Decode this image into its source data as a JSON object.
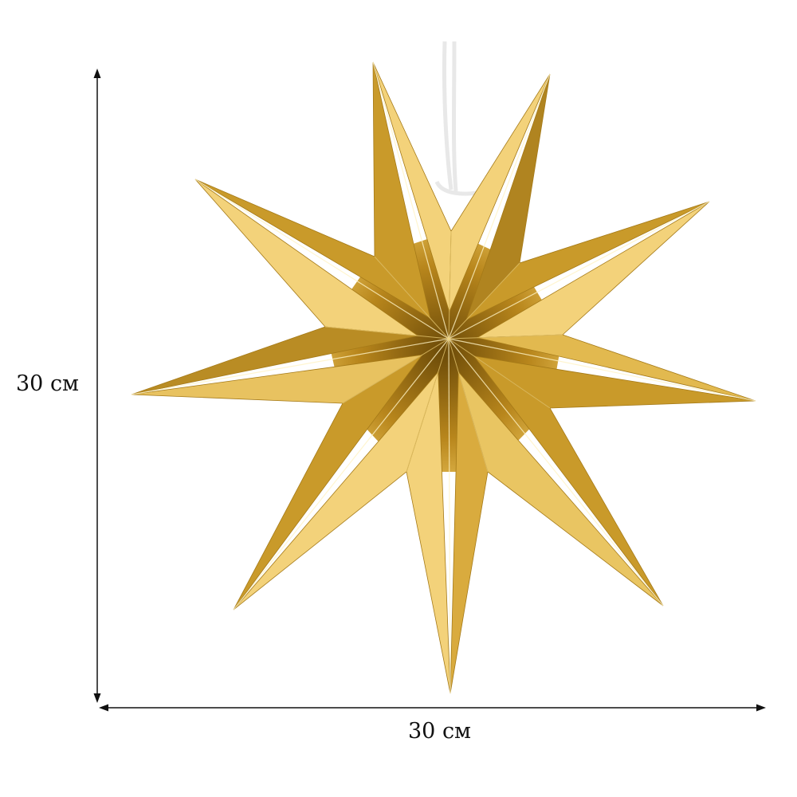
{
  "dimensions": {
    "height_label": "30 см",
    "width_label": "30 см"
  },
  "product": {
    "points": 9,
    "colors": {
      "gold_light": "#f3d27a",
      "gold_mid": "#c99a2a",
      "gold_dark": "#8a6410",
      "cord": "#f4f4f4"
    }
  }
}
